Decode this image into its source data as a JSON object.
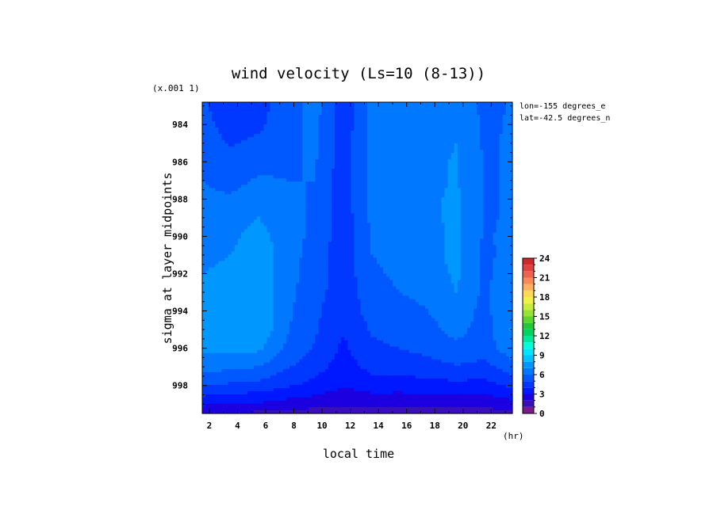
{
  "chart_data": {
    "type": "heatmap",
    "title": "wind velocity (Ls=10 (8-13))",
    "scale_note": "(x.001 1)",
    "xlabel": "local time",
    "x_unit": "(hr)",
    "ylabel": "sigma at layer midpoints",
    "xlim": [
      1.5,
      23.5
    ],
    "ylim": [
      999.5,
      982.8
    ],
    "x_ticks": [
      "2",
      "4",
      "6",
      "8",
      "10",
      "12",
      "14",
      "16",
      "18",
      "20",
      "22"
    ],
    "y_ticks": [
      "984",
      "986",
      "988",
      "990",
      "992",
      "994",
      "996",
      "998"
    ],
    "annotations": [
      "lon=-155 degrees_e",
      "lat=-42.5 degrees_n"
    ],
    "colorbar": {
      "ticks": [
        "0",
        "3",
        "6",
        "9",
        "12",
        "15",
        "18",
        "21",
        "24"
      ],
      "range": [
        0,
        24
      ],
      "step": 1
    },
    "x": [
      1.5,
      3.5,
      5.5,
      7.5,
      9.5,
      11.5,
      13.5,
      15.5,
      17.5,
      19.5,
      21.5,
      23.5
    ],
    "y": [
      983,
      984,
      985,
      986,
      987,
      988,
      989,
      990,
      991,
      992,
      993,
      994,
      995,
      996,
      997,
      998,
      999,
      999.5
    ],
    "z": [
      [
        5.2,
        4.2,
        4.6,
        5.6,
        6.4,
        4.4,
        6.2,
        6.3,
        6.5,
        7.0,
        5.7,
        6.1
      ],
      [
        5.4,
        4.5,
        4.8,
        5.7,
        6.3,
        4.4,
        6.2,
        6.4,
        6.6,
        7.0,
        5.8,
        6.1
      ],
      [
        5.6,
        4.9,
        5.2,
        5.8,
        6.2,
        4.4,
        6.3,
        6.4,
        6.6,
        7.0,
        5.9,
        6.1
      ],
      [
        5.8,
        5.3,
        5.7,
        5.9,
        6.1,
        4.4,
        6.3,
        6.5,
        6.7,
        7.1,
        5.9,
        6.1
      ],
      [
        6.0,
        5.7,
        6.1,
        6.0,
        6.0,
        4.4,
        6.3,
        6.5,
        6.7,
        7.1,
        5.9,
        6.1
      ],
      [
        6.2,
        6.1,
        6.6,
        6.2,
        5.9,
        4.4,
        6.3,
        6.5,
        6.8,
        7.2,
        5.9,
        6.1
      ],
      [
        6.4,
        6.5,
        7.0,
        6.4,
        5.8,
        4.4,
        6.2,
        6.4,
        6.8,
        7.2,
        5.9,
        6.1
      ],
      [
        6.6,
        6.8,
        7.4,
        6.5,
        5.7,
        4.4,
        6.1,
        6.4,
        6.7,
        7.2,
        5.9,
        6.2
      ],
      [
        6.8,
        7.0,
        7.6,
        6.4,
        5.6,
        4.4,
        6.0,
        6.3,
        6.6,
        7.3,
        5.8,
        6.3
      ],
      [
        7.0,
        7.2,
        7.8,
        6.4,
        5.5,
        4.4,
        5.8,
        6.2,
        6.4,
        7.2,
        5.8,
        6.5
      ],
      [
        7.2,
        7.5,
        7.9,
        6.3,
        5.4,
        4.4,
        5.6,
        6.0,
        6.2,
        7.0,
        5.8,
        6.7
      ],
      [
        7.4,
        7.7,
        7.9,
        6.2,
        5.2,
        4.3,
        5.4,
        5.7,
        6.0,
        6.6,
        5.7,
        6.9
      ],
      [
        7.5,
        7.9,
        7.8,
        6.1,
        5.1,
        4.1,
        5.1,
        5.4,
        5.7,
        6.3,
        5.6,
        7.1
      ],
      [
        7.2,
        7.3,
        7.2,
        5.8,
        4.9,
        3.8,
        4.8,
        5.0,
        5.3,
        5.8,
        5.4,
        6.7
      ],
      [
        6.4,
        6.2,
        6.0,
        5.1,
        4.4,
        3.5,
        4.3,
        4.4,
        4.6,
        4.9,
        4.7,
        5.6
      ],
      [
        5.1,
        4.8,
        4.6,
        4.1,
        3.7,
        3.1,
        3.5,
        3.5,
        3.6,
        3.7,
        3.6,
        4.2
      ],
      [
        3.2,
        3.0,
        2.9,
        2.6,
        2.4,
        2.1,
        2.3,
        2.2,
        2.3,
        2.3,
        2.3,
        2.6
      ],
      [
        2.0,
        1.9,
        1.8,
        1.6,
        1.5,
        1.4,
        1.5,
        1.4,
        1.5,
        1.5,
        1.5,
        1.7
      ]
    ],
    "colors": [
      "#7a1a8a",
      "#3a0fb8",
      "#1c00e0",
      "#0018ff",
      "#0038ff",
      "#0058ff",
      "#0078ff",
      "#0098ff",
      "#00c4ff",
      "#00e5ff",
      "#00ffd6",
      "#00e89a",
      "#00d45e",
      "#22c83a",
      "#5cd62c",
      "#98e234",
      "#c8ec3c",
      "#f0f048",
      "#ffd858",
      "#ffb060",
      "#f88a58",
      "#ec6450",
      "#e04040",
      "#d02828",
      "#c01818"
    ]
  }
}
